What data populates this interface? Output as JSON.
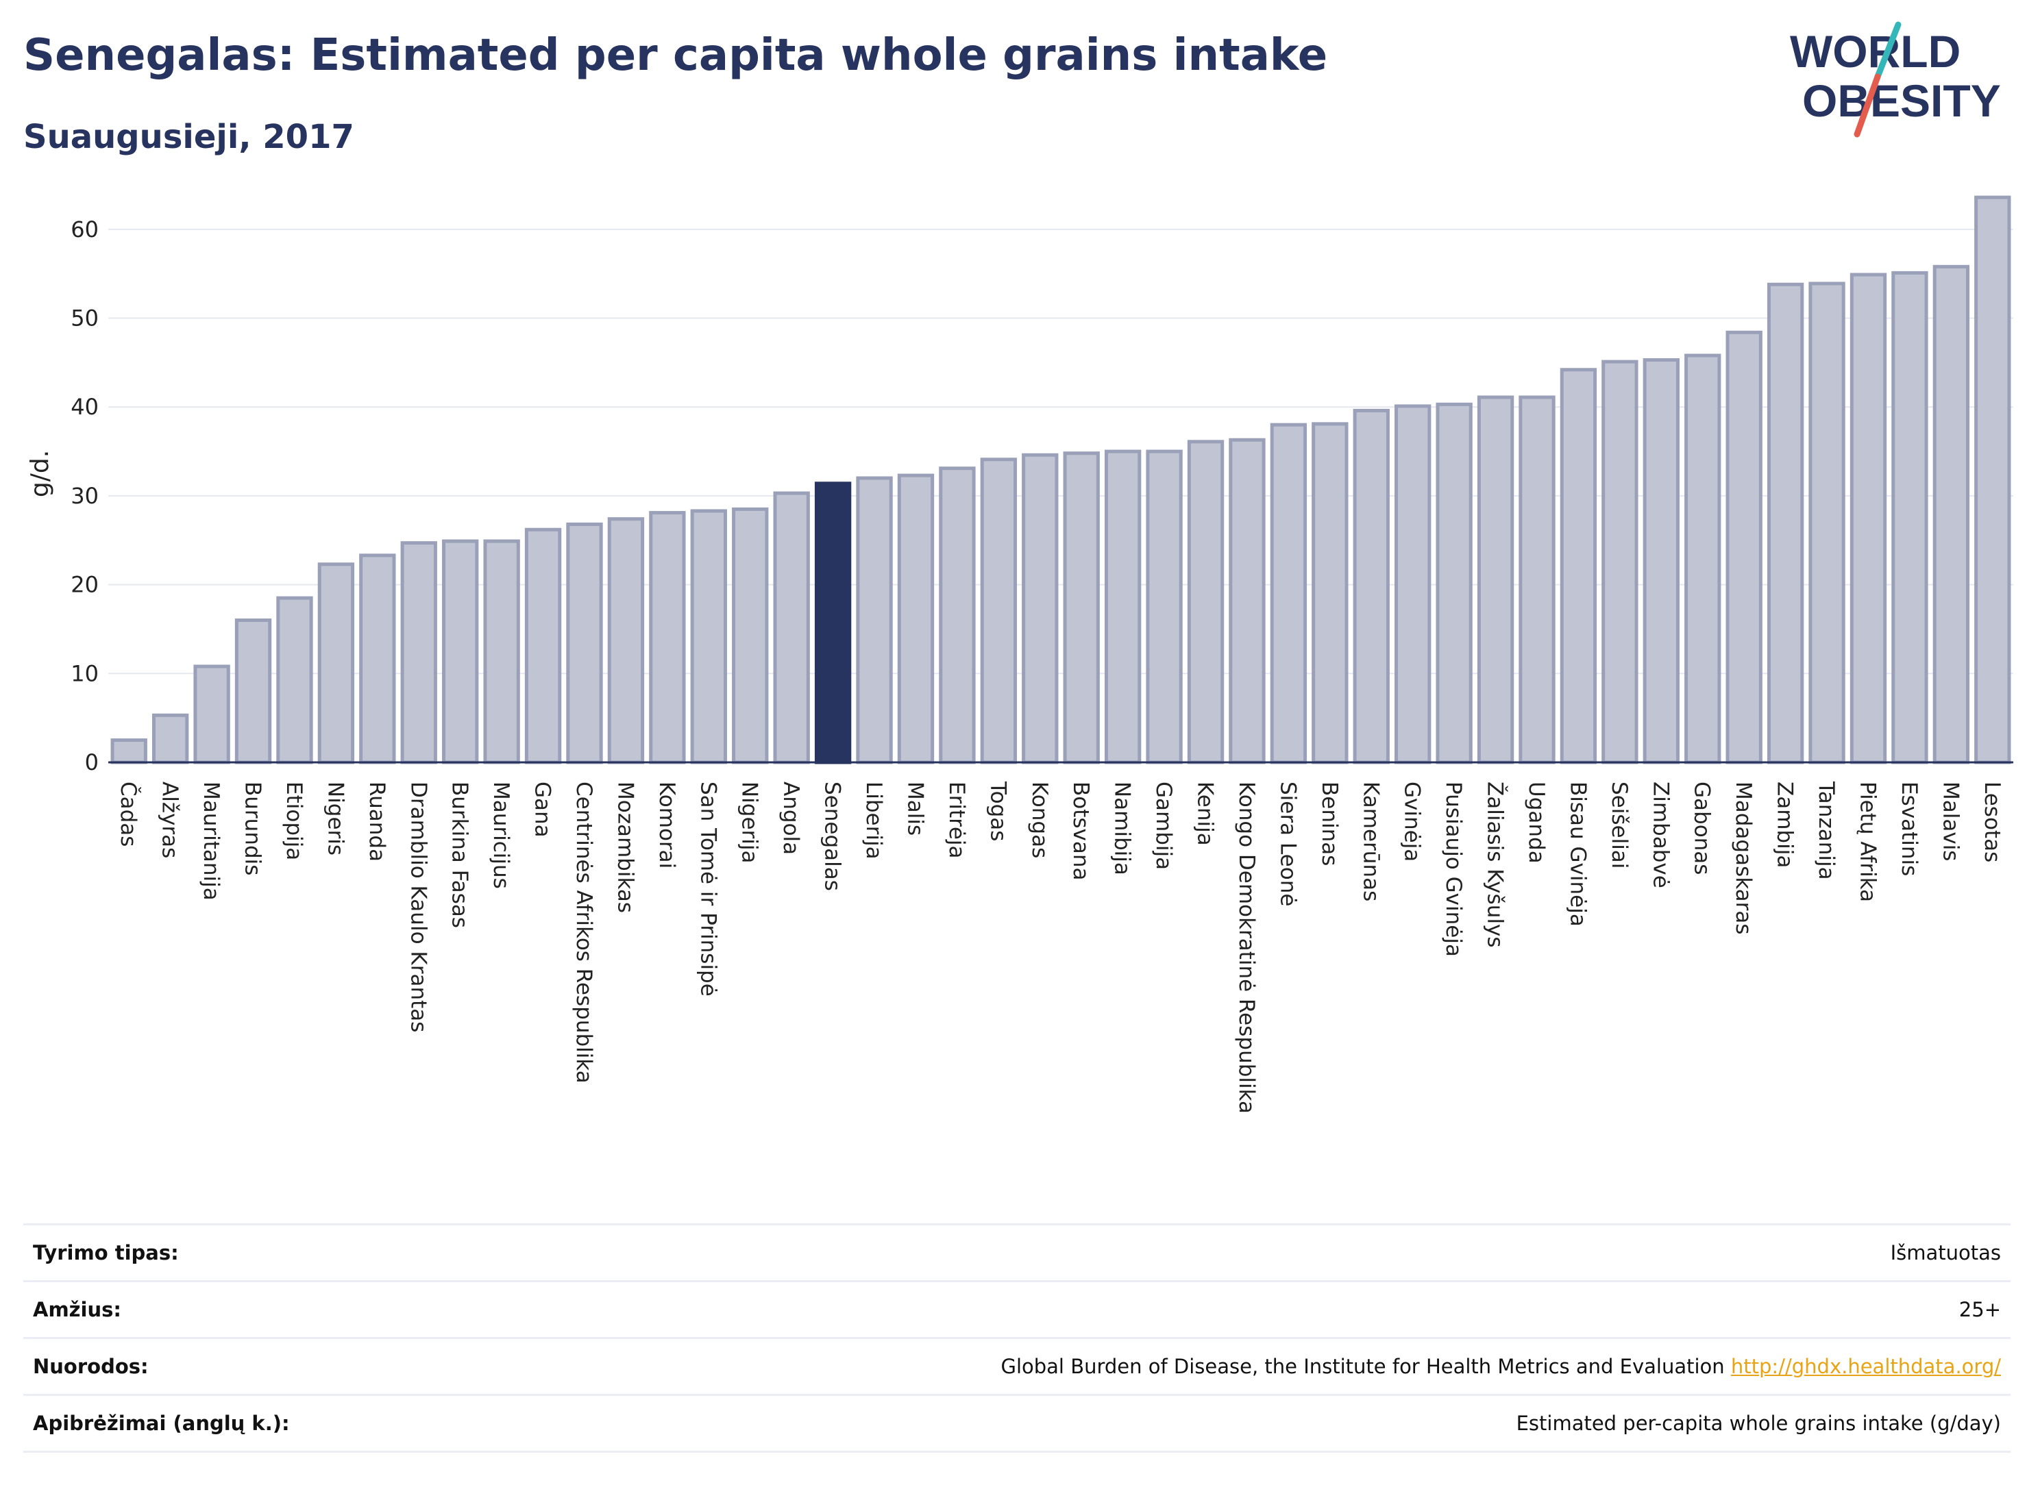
{
  "header": {
    "title": "Senegalas: Estimated per capita whole grains intake",
    "subtitle": "Suaugusieji, 2017"
  },
  "logo": {
    "line1": "WORLD",
    "line2": "OBESITY",
    "colors": {
      "text": "#283460",
      "slash_teal": "#35b7b9",
      "slash_red": "#e35c4e"
    }
  },
  "chart_data": {
    "type": "bar",
    "ylabel": "g/d.",
    "ylim": [
      0,
      65
    ],
    "yticks": [
      0,
      10,
      20,
      30,
      40,
      50,
      60
    ],
    "grid": true,
    "highlight": "Senegalas",
    "colors": {
      "bar": "#c0c4d3",
      "bar_edge": "#9aa0b8",
      "highlight": "#283460"
    },
    "categories": [
      "Čadas",
      "Alžyras",
      "Mauritanija",
      "Burundis",
      "Etiopija",
      "Nigeris",
      "Ruanda",
      "Dramblio Kaulo Krantas",
      "Burkina Fasas",
      "Mauricijus",
      "Gana",
      "Centrinės Afrikos Respublika",
      "Mozambikas",
      "Komorai",
      "San Tomė ir Prinsipė",
      "Nigerija",
      "Angola",
      "Senegalas",
      "Liberija",
      "Malis",
      "Eritrėja",
      "Togas",
      "Kongas",
      "Botsvana",
      "Namibija",
      "Gambija",
      "Kenija",
      "Kongo Demokratinė Respublika",
      "Siera Leonė",
      "Beninas",
      "Kamerūnas",
      "Gvinėja",
      "Pusiaujo Gvinėja",
      "Žaliasis Kyšulys",
      "Uganda",
      "Bisau Gvinėja",
      "Seišeliai",
      "Zimbabvė",
      "Gabonas",
      "Madagaskaras",
      "Zambija",
      "Tanzanija",
      "Pietų Afrika",
      "Esvatinis",
      "Malavis",
      "Lesotas"
    ],
    "values": [
      2.5,
      5.3,
      10.8,
      16.0,
      18.5,
      22.3,
      23.3,
      24.7,
      24.9,
      24.9,
      26.2,
      26.8,
      27.4,
      28.1,
      28.3,
      28.5,
      30.3,
      31.4,
      32.0,
      32.3,
      33.1,
      34.1,
      34.6,
      34.8,
      35.0,
      35.0,
      36.1,
      36.3,
      38.0,
      38.1,
      39.6,
      40.1,
      40.3,
      41.1,
      41.1,
      44.2,
      45.1,
      45.3,
      45.8,
      48.4,
      53.8,
      53.9,
      54.9,
      55.1,
      55.8,
      63.6
    ]
  },
  "info": [
    {
      "label": "Tyrimo tipas:",
      "value": "Išmatuotas"
    },
    {
      "label": "Amžius:",
      "value": "25+"
    },
    {
      "label": "Nuorodos:",
      "value": "Global Burden of Disease, the Institute for Health Metrics and Evaluation",
      "link": "http://ghdx.healthdata.org/"
    },
    {
      "label": "Apibrėžimai (anglų k.):",
      "value": "Estimated per-capita whole grains intake (g/day)"
    }
  ]
}
